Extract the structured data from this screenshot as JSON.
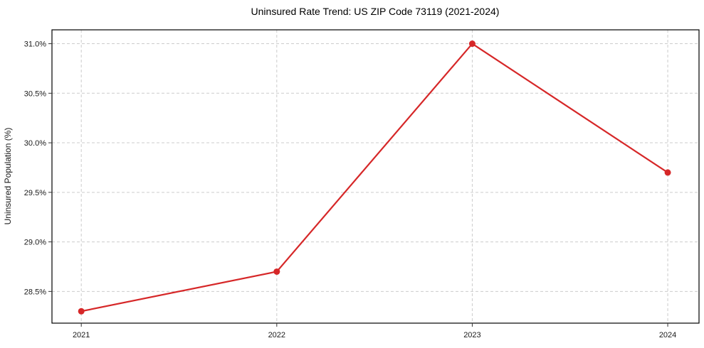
{
  "figure": {
    "background": "#ffffff"
  },
  "colors": {
    "line": "#d62728",
    "marker": "#d62728",
    "grid": "#cccccc",
    "spine": "#000000",
    "tick": "#333333",
    "text": "#1a1a1a"
  },
  "chart_data": {
    "type": "line",
    "title": "Uninsured Rate Trend: US ZIP Code 73119 (2021-2024)",
    "xlabel": "",
    "ylabel": "Uninsured Population (%)",
    "x": [
      2021,
      2022,
      2023,
      2024
    ],
    "series": [
      {
        "name": "Uninsured Population (%)",
        "values": [
          28.3,
          28.7,
          31.0,
          29.7
        ],
        "color": "#d62728",
        "marker": "circle"
      }
    ],
    "xtick_labels": [
      "2021",
      "2022",
      "2023",
      "2024"
    ],
    "ytick_values": [
      28.5,
      29.0,
      29.5,
      30.0,
      30.5,
      31.0
    ],
    "ytick_labels": [
      "28.5%",
      "29.0%",
      "29.5%",
      "30.0%",
      "30.5%",
      "31.0%"
    ],
    "xlim": [
      2020.85,
      2024.16
    ],
    "ylim": [
      28.18,
      31.14
    ],
    "grid": true,
    "grid_style": "dashed",
    "legend_position": "none"
  }
}
